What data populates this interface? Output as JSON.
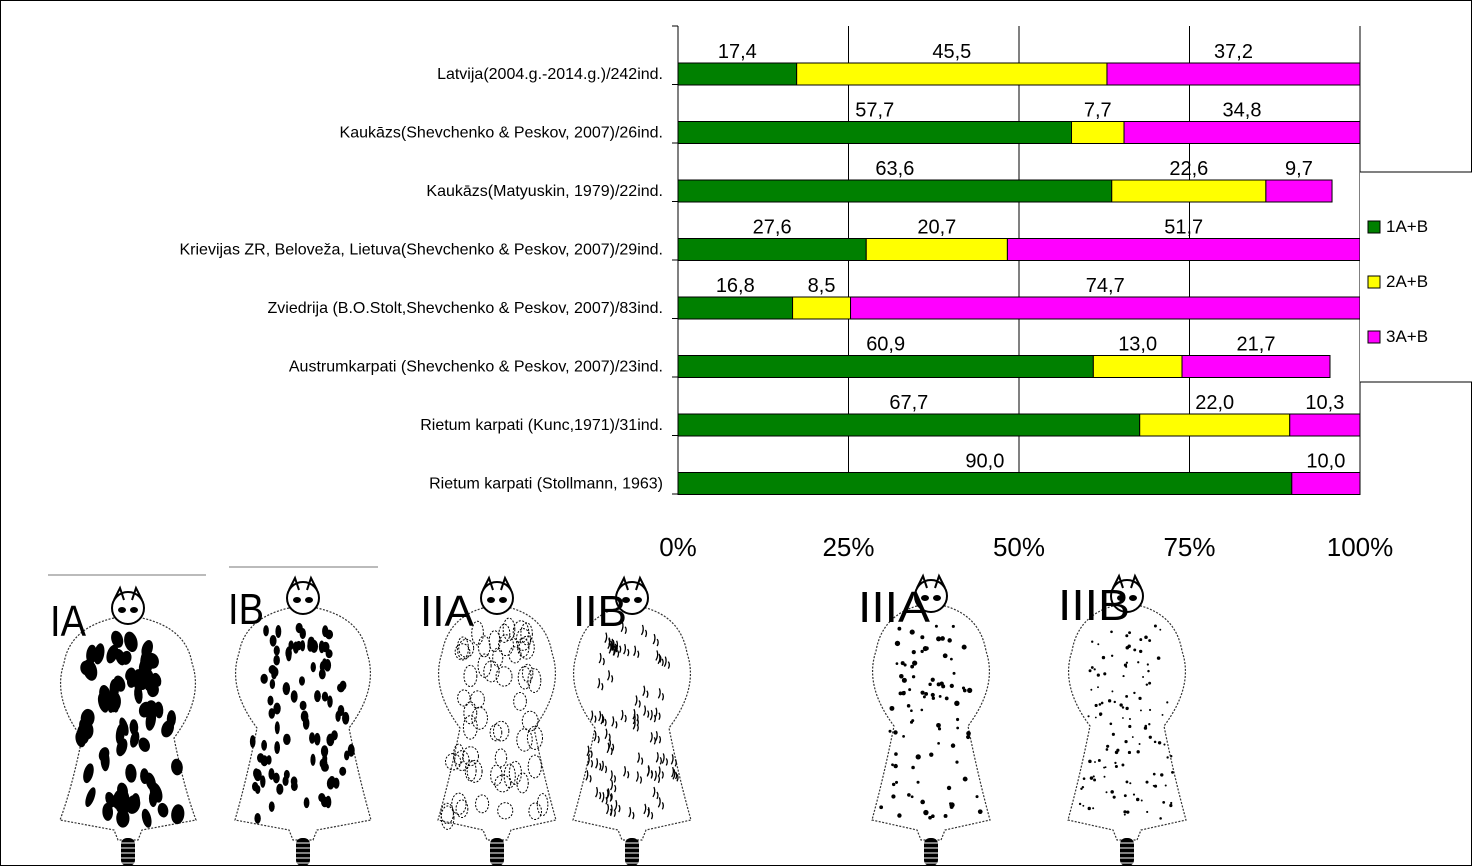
{
  "chart_data": {
    "type": "bar",
    "stacked": true,
    "orientation": "horizontal",
    "title": "",
    "xlabel": "",
    "ylabel": "",
    "xlim": [
      0,
      100
    ],
    "xticks": [
      "0%",
      "25%",
      "50%",
      "75%",
      "100%"
    ],
    "grid": true,
    "legend_position": "right",
    "categories": [
      "Latvija(2004.g.-2014.g.)/242ind.",
      "Kaukāzs(Shevchenko & Peskov, 2007)/26ind.",
      "Kaukāzs(Matyuskin, 1979)/22ind.",
      "Krievijas ZR, Beloveža, Lietuva(Shevchenko & Peskov, 2007)/29ind.",
      "Zviedrija (B.O.Stolt,Shevchenko & Peskov, 2007)/83ind.",
      "Austrumkarpati (Shevchenko & Peskov, 2007)/23ind.",
      "Rietum karpati (Kunc,1971)/31ind.",
      "Rietum karpati (Stollmann, 1963)"
    ],
    "series": [
      {
        "name": "1A+B",
        "color": "#008000",
        "values": [
          17.4,
          57.7,
          63.6,
          27.6,
          16.8,
          60.9,
          67.7,
          90.0
        ],
        "labels": [
          "17,4",
          "57,7",
          "63,6",
          "27,6",
          "16,8",
          "60,9",
          "67,7",
          "90,0"
        ]
      },
      {
        "name": "2A+B",
        "color": "#ffff00",
        "values": [
          45.5,
          7.7,
          22.6,
          20.7,
          8.5,
          13.0,
          22.0,
          0
        ],
        "labels": [
          "45,5",
          "7,7",
          "22,6",
          "20,7",
          "8,5",
          "13,0",
          "22,0",
          ""
        ]
      },
      {
        "name": "3A+B",
        "color": "#ff00ff",
        "values": [
          37.2,
          34.8,
          9.7,
          51.7,
          74.7,
          21.7,
          10.3,
          10.0
        ],
        "labels": [
          "37,2",
          "34,8",
          "9,7",
          "51,7",
          "74,7",
          "21,7",
          "10,3",
          "10,0"
        ]
      }
    ]
  },
  "pelt_images": [
    {
      "label": "IA",
      "icon": "dense-large-spots-pelt"
    },
    {
      "label": "IB",
      "icon": "medium-spots-pelt"
    },
    {
      "label": "IIA",
      "icon": "ring-spots-pelt"
    },
    {
      "label": "IIB",
      "icon": "broken-ring-spots-pelt"
    },
    {
      "label": "IIIA",
      "icon": "small-dots-pelt"
    },
    {
      "label": "IIIB",
      "icon": "fine-dots-pelt"
    }
  ]
}
